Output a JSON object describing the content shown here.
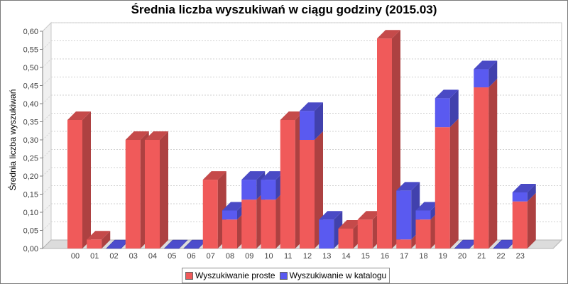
{
  "chart_data": {
    "type": "bar",
    "stacked": true,
    "three_d": true,
    "title": "Średnia liczba wyszukiwań w ciągu godziny (2015.03)",
    "xlabel": "",
    "ylabel": "Średnia liczba wyszukiwań",
    "ylim": [
      0,
      0.6
    ],
    "ytick_step": 0.05,
    "grid": true,
    "legend_position": "bottom",
    "categories": [
      "00",
      "01",
      "02",
      "03",
      "04",
      "05",
      "06",
      "07",
      "08",
      "09",
      "10",
      "11",
      "12",
      "13",
      "14",
      "15",
      "16",
      "17",
      "18",
      "19",
      "20",
      "21",
      "22",
      "23"
    ],
    "series": [
      {
        "name": "Wyszukiwanie proste",
        "color": "#f05a5a",
        "values": [
          0.355,
          0.025,
          0.0,
          0.3,
          0.3,
          0.0,
          0.0,
          0.19,
          0.08,
          0.135,
          0.135,
          0.355,
          0.3,
          0.0,
          0.055,
          0.08,
          0.58,
          0.025,
          0.08,
          0.335,
          0.0,
          0.445,
          0.0,
          0.13
        ]
      },
      {
        "name": "Wyszukiwanie w katalogu",
        "color": "#5a5af0",
        "values": [
          0.0,
          0.0,
          0.0,
          0.0,
          0.0,
          0.0,
          0.0,
          0.0,
          0.025,
          0.055,
          0.055,
          0.0,
          0.08,
          0.08,
          0.0,
          0.0,
          0.0,
          0.135,
          0.025,
          0.08,
          0.0,
          0.05,
          0.0,
          0.025
        ]
      }
    ]
  }
}
